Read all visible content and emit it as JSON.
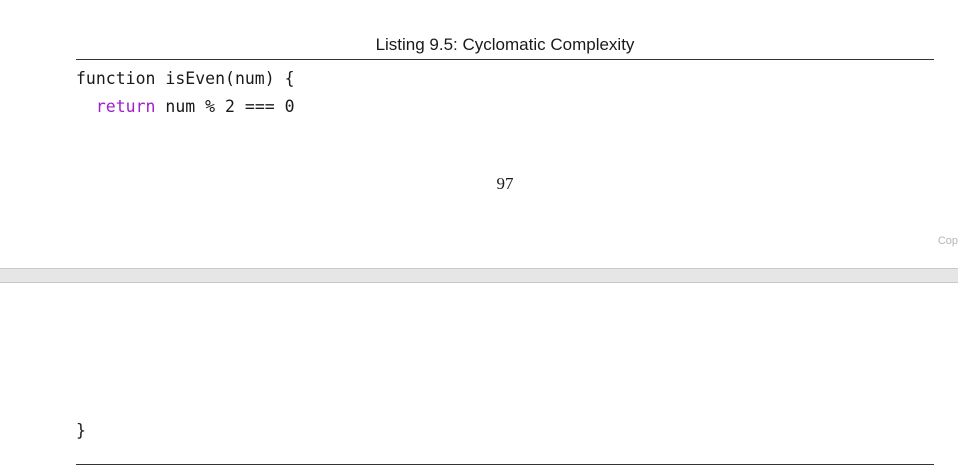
{
  "listing": {
    "caption": "Listing 9.5: Cyclomatic Complexity",
    "line1": "function isEven(num) {",
    "line2_indent": "  ",
    "line2_keyword": "return",
    "line2_rest": " num % 2 === 0",
    "line3": "}"
  },
  "footer": {
    "page_number": "97",
    "copyright": "Cop"
  },
  "colors": {
    "keyword": "#a020c8",
    "page_gap": "#e6e6e6"
  }
}
